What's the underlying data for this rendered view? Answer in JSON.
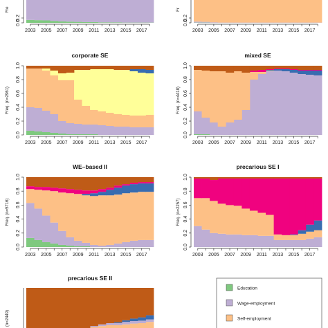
{
  "colors": {
    "Education": "#7fc97f",
    "Wage-employment": "#beaed4",
    "Self-employment": "#fdc086",
    "yellow": "#ffff99",
    "blue": "#386cb0",
    "magenta": "#f0027f",
    "brown": "#bf5b17"
  },
  "legend": [
    {
      "name": "Education",
      "label": "Education"
    },
    {
      "name": "Wage-employment",
      "label": "Wage-employment"
    },
    {
      "name": "Self-employment",
      "label": "Self-employment"
    }
  ],
  "chart_data": [
    {
      "type": "area",
      "title": "",
      "ylabel": "Fre",
      "x": [
        2003,
        2004,
        2005,
        2006,
        2007,
        2008,
        2009,
        2010,
        2011,
        2012,
        2013,
        2014,
        2015,
        2016,
        2017,
        2018
      ],
      "xticks": [
        "2003",
        "2005",
        "2007",
        "2009",
        "2011",
        "2013",
        "2015",
        "2017"
      ],
      "yticks": [
        "0.0",
        "0.2"
      ],
      "ylim": [
        0,
        1
      ],
      "series": [
        {
          "color": "Education",
          "values": [
            0.12,
            0.11,
            0.1,
            0.08,
            0.06,
            0.05,
            0.04,
            0.03,
            0.03,
            0.02,
            0.02,
            0.02,
            0.01,
            0.01,
            0.01,
            0.01
          ]
        },
        {
          "color": "Wage-employment",
          "values": [
            0.88,
            0.89,
            0.9,
            0.92,
            0.94,
            0.95,
            0.96,
            0.97,
            0.97,
            0.98,
            0.98,
            0.98,
            0.99,
            0.99,
            0.99,
            0.99
          ]
        }
      ]
    },
    {
      "type": "area",
      "title": "",
      "ylabel": "Fr",
      "x": [
        2003,
        2004,
        2005,
        2006,
        2007,
        2008,
        2009,
        2010,
        2011,
        2012,
        2013,
        2014,
        2015,
        2016,
        2017,
        2018
      ],
      "xticks": [
        "2003",
        "2005",
        "2007",
        "2009",
        "2011",
        "2013",
        "2015",
        "2017"
      ],
      "yticks": [
        "0.0",
        "0.2"
      ],
      "ylim": [
        0,
        1
      ],
      "series": [
        {
          "color": "Education",
          "values": [
            0.01,
            0.01,
            0,
            0,
            0,
            0,
            0,
            0,
            0,
            0,
            0,
            0,
            0,
            0,
            0,
            0
          ]
        },
        {
          "color": "Wage-employment",
          "values": [
            0.04,
            0.03,
            0.02,
            0.01,
            0.01,
            0.01,
            0.01,
            0.01,
            0.01,
            0.01,
            0.01,
            0.01,
            0.01,
            0.01,
            0.01,
            0.01
          ]
        },
        {
          "color": "Self-employment",
          "values": [
            0.95,
            0.96,
            0.98,
            0.99,
            0.99,
            0.99,
            0.99,
            0.99,
            0.99,
            0.99,
            0.99,
            0.99,
            0.99,
            0.99,
            0.99,
            0.99
          ]
        }
      ]
    },
    {
      "type": "area",
      "title": "corporate SE",
      "ylabel": "Freq. (n=2961)",
      "x": [
        2003,
        2004,
        2005,
        2006,
        2007,
        2008,
        2009,
        2010,
        2011,
        2012,
        2013,
        2014,
        2015,
        2016,
        2017,
        2018
      ],
      "xticks": [
        "2003",
        "2005",
        "2007",
        "2009",
        "2011",
        "2013",
        "2015",
        "2017"
      ],
      "yticks": [
        "0.0",
        "0.2",
        "0.4",
        "0.6",
        "0.8",
        "1.0"
      ],
      "ylim": [
        0,
        1
      ],
      "series": [
        {
          "color": "Education",
          "values": [
            0.06,
            0.05,
            0.04,
            0.03,
            0.02,
            0.01,
            0.01,
            0.01,
            0.01,
            0,
            0,
            0,
            0,
            0,
            0,
            0
          ]
        },
        {
          "color": "Wage-employment",
          "values": [
            0.34,
            0.34,
            0.31,
            0.27,
            0.18,
            0.16,
            0.15,
            0.14,
            0.14,
            0.14,
            0.13,
            0.12,
            0.12,
            0.11,
            0.11,
            0.11
          ]
        },
        {
          "color": "Self-employment",
          "values": [
            0.56,
            0.57,
            0.58,
            0.56,
            0.59,
            0.62,
            0.35,
            0.27,
            0.21,
            0.2,
            0.19,
            0.18,
            0.17,
            0.17,
            0.17,
            0.18
          ]
        },
        {
          "color": "yellow",
          "values": [
            0,
            0,
            0.03,
            0.07,
            0.1,
            0.11,
            0.43,
            0.52,
            0.59,
            0.61,
            0.63,
            0.64,
            0.65,
            0.64,
            0.62,
            0.6
          ]
        },
        {
          "color": "blue",
          "values": [
            0,
            0,
            0,
            0,
            0,
            0,
            0,
            0,
            0,
            0,
            0,
            0,
            0,
            0.03,
            0.05,
            0.05
          ]
        },
        {
          "color": "brown",
          "values": [
            0.04,
            0.04,
            0.04,
            0.07,
            0.11,
            0.1,
            0.06,
            0.06,
            0.05,
            0.05,
            0.05,
            0.06,
            0.06,
            0.05,
            0.05,
            0.06
          ]
        }
      ]
    },
    {
      "type": "area",
      "title": "mixed SE",
      "ylabel": "Freq. (n=4418)",
      "x": [
        2003,
        2004,
        2005,
        2006,
        2007,
        2008,
        2009,
        2010,
        2011,
        2012,
        2013,
        2014,
        2015,
        2016,
        2017,
        2018
      ],
      "xticks": [
        "2003",
        "2005",
        "2007",
        "2009",
        "2011",
        "2013",
        "2015",
        "2017"
      ],
      "yticks": [
        "0.0",
        "0.2",
        "0.4",
        "0.6",
        "0.8",
        "1.0"
      ],
      "ylim": [
        0,
        1
      ],
      "series": [
        {
          "color": "Education",
          "values": [
            0.01,
            0.01,
            0,
            0,
            0,
            0,
            0,
            0,
            0,
            0,
            0,
            0,
            0,
            0,
            0,
            0
          ]
        },
        {
          "color": "Wage-employment",
          "values": [
            0.33,
            0.24,
            0.18,
            0.12,
            0.18,
            0.22,
            0.36,
            0.8,
            0.88,
            0.92,
            0.93,
            0.92,
            0.9,
            0.88,
            0.87,
            0.86
          ]
        },
        {
          "color": "Self-employment",
          "values": [
            0.6,
            0.68,
            0.74,
            0.8,
            0.72,
            0.7,
            0.54,
            0.11,
            0.03,
            0.01,
            0,
            0,
            0,
            0,
            0,
            0
          ]
        },
        {
          "color": "blue",
          "values": [
            0,
            0,
            0,
            0,
            0,
            0,
            0,
            0,
            0,
            0.01,
            0.02,
            0.03,
            0.04,
            0.05,
            0.06,
            0.07
          ]
        },
        {
          "color": "magenta",
          "values": [
            0,
            0,
            0,
            0,
            0,
            0,
            0,
            0.02,
            0.03,
            0.01,
            0.01,
            0.01,
            0.01,
            0.01,
            0.01,
            0.01
          ]
        },
        {
          "color": "brown",
          "values": [
            0.06,
            0.07,
            0.08,
            0.08,
            0.1,
            0.08,
            0.1,
            0.07,
            0.06,
            0.05,
            0.04,
            0.04,
            0.05,
            0.06,
            0.06,
            0.06
          ]
        }
      ]
    },
    {
      "type": "area",
      "title": "WE–based II",
      "ylabel": "Freq. (n=5716)",
      "x": [
        2003,
        2004,
        2005,
        2006,
        2007,
        2008,
        2009,
        2010,
        2011,
        2012,
        2013,
        2014,
        2015,
        2016,
        2017,
        2018
      ],
      "xticks": [
        "2003",
        "2005",
        "2007",
        "2009",
        "2011",
        "2013",
        "2015",
        "2017"
      ],
      "yticks": [
        "0.0",
        "0.2",
        "0.4",
        "0.6",
        "0.8",
        "1.0"
      ],
      "ylim": [
        0,
        1
      ],
      "series": [
        {
          "color": "Education",
          "values": [
            0.13,
            0.1,
            0.07,
            0.05,
            0.03,
            0.02,
            0.01,
            0.01,
            0,
            0,
            0,
            0,
            0,
            0,
            0,
            0
          ]
        },
        {
          "color": "Wage-employment",
          "values": [
            0.5,
            0.45,
            0.38,
            0.3,
            0.2,
            0.12,
            0.08,
            0.05,
            0.03,
            0.02,
            0.03,
            0.05,
            0.07,
            0.09,
            0.1,
            0.1
          ]
        },
        {
          "color": "Self-employment",
          "values": [
            0.2,
            0.27,
            0.36,
            0.45,
            0.55,
            0.63,
            0.67,
            0.68,
            0.7,
            0.72,
            0.71,
            0.7,
            0.7,
            0.69,
            0.69,
            0.69
          ]
        },
        {
          "color": "blue",
          "values": [
            0,
            0,
            0,
            0,
            0,
            0,
            0,
            0.02,
            0.04,
            0.05,
            0.08,
            0.1,
            0.11,
            0.12,
            0.12,
            0.12
          ]
        },
        {
          "color": "magenta",
          "values": [
            0.04,
            0.04,
            0.05,
            0.05,
            0.06,
            0.06,
            0.06,
            0.05,
            0.04,
            0.04,
            0.03,
            0.03,
            0.02,
            0.02,
            0.02,
            0.02
          ]
        },
        {
          "color": "brown",
          "values": [
            0.13,
            0.14,
            0.14,
            0.15,
            0.16,
            0.17,
            0.18,
            0.19,
            0.19,
            0.17,
            0.15,
            0.12,
            0.1,
            0.08,
            0.07,
            0.07
          ]
        }
      ]
    },
    {
      "type": "area",
      "title": "precarious SE I",
      "ylabel": "Freq. (n=2257)",
      "x": [
        2003,
        2004,
        2005,
        2006,
        2007,
        2008,
        2009,
        2010,
        2011,
        2012,
        2013,
        2014,
        2015,
        2016,
        2017,
        2018
      ],
      "xticks": [
        "2003",
        "2005",
        "2007",
        "2009",
        "2011",
        "2013",
        "2015",
        "2017"
      ],
      "yticks": [
        "0.0",
        "0.2",
        "0.4",
        "0.6",
        "0.8",
        "1.0"
      ],
      "ylim": [
        0,
        1
      ],
      "series": [
        {
          "color": "Education",
          "values": [
            0,
            0,
            0,
            0,
            0,
            0,
            0,
            0,
            0,
            0,
            0,
            0,
            0,
            0,
            0,
            0
          ]
        },
        {
          "color": "Wage-employment",
          "values": [
            0.3,
            0.25,
            0.2,
            0.19,
            0.18,
            0.18,
            0.17,
            0.17,
            0.16,
            0.16,
            0.1,
            0.1,
            0.1,
            0.1,
            0.12,
            0.14
          ]
        },
        {
          "color": "Self-employment",
          "values": [
            0.4,
            0.45,
            0.46,
            0.43,
            0.42,
            0.41,
            0.38,
            0.35,
            0.33,
            0.3,
            0.08,
            0.07,
            0.07,
            0.09,
            0.1,
            0.1
          ]
        },
        {
          "color": "blue",
          "values": [
            0,
            0,
            0,
            0,
            0,
            0,
            0,
            0,
            0,
            0,
            0,
            0,
            0.01,
            0.05,
            0.1,
            0.14
          ]
        },
        {
          "color": "magenta",
          "values": [
            0.28,
            0.28,
            0.3,
            0.36,
            0.38,
            0.39,
            0.43,
            0.46,
            0.49,
            0.52,
            0.8,
            0.81,
            0.8,
            0.74,
            0.66,
            0.6
          ]
        },
        {
          "color": "brown",
          "values": [
            0.02,
            0.02,
            0.04,
            0.02,
            0.02,
            0.02,
            0.02,
            0.02,
            0.02,
            0.02,
            0.02,
            0.02,
            0.02,
            0.02,
            0.02,
            0.02
          ]
        }
      ]
    },
    {
      "type": "area",
      "title": "precarious SE II",
      "ylabel": "(n=2449)",
      "x": [
        2003,
        2004,
        2005,
        2006,
        2007,
        2008,
        2009,
        2010,
        2011,
        2012,
        2013,
        2014,
        2015,
        2016,
        2017,
        2018
      ],
      "xticks": [],
      "yticks": [],
      "ylim": [
        0,
        1
      ],
      "series": [
        {
          "color": "Self-employment",
          "values": [
            0,
            0,
            0,
            0,
            0,
            0,
            0,
            0,
            0.05,
            0.08,
            0.1,
            0.1,
            0.12,
            0.14,
            0.15,
            0.18
          ]
        },
        {
          "color": "Wage-employment",
          "values": [
            0,
            0,
            0,
            0,
            0,
            0,
            0,
            0,
            0.03,
            0.04,
            0.05,
            0.05,
            0.06,
            0.06,
            0.06,
            0.06
          ]
        },
        {
          "color": "blue",
          "values": [
            0,
            0,
            0,
            0,
            0,
            0,
            0,
            0,
            0,
            0,
            0,
            0.02,
            0.04,
            0.06,
            0.08,
            0.1
          ]
        },
        {
          "color": "brown",
          "values": [
            1,
            1,
            1,
            1,
            1,
            1,
            1,
            1,
            0.92,
            0.88,
            0.85,
            0.83,
            0.78,
            0.74,
            0.71,
            0.66
          ]
        }
      ]
    }
  ]
}
